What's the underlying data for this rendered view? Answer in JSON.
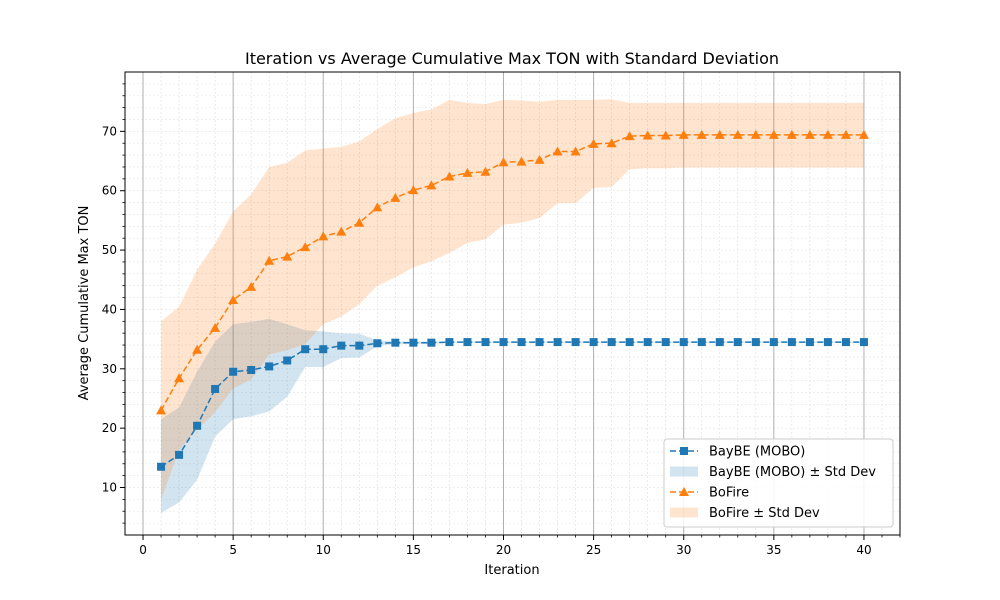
{
  "chart_data": {
    "type": "line",
    "title": "Iteration vs Average Cumulative Max TON with Standard Deviation",
    "xlabel": "Iteration",
    "ylabel": "Average Cumulative Max TON",
    "xlim": [
      -1,
      42
    ],
    "ylim": [
      2,
      80
    ],
    "xticks": [
      0,
      5,
      10,
      15,
      20,
      25,
      30,
      35,
      40
    ],
    "yticks": [
      10,
      20,
      30,
      40,
      50,
      60,
      70
    ],
    "grid": "major vertical solid, minor dotted",
    "legend_position": "lower-right",
    "x": [
      1,
      2,
      3,
      4,
      5,
      6,
      7,
      8,
      9,
      10,
      11,
      12,
      13,
      14,
      15,
      16,
      17,
      18,
      19,
      20,
      21,
      22,
      23,
      24,
      25,
      26,
      27,
      28,
      29,
      30,
      31,
      32,
      33,
      34,
      35,
      36,
      37,
      38,
      39,
      40
    ],
    "series": [
      {
        "name": "BayBE (MOBO)",
        "band_name": "BayBE (MOBO) ± Std Dev",
        "color": "#1f77b4",
        "band_color": "#1f77b4",
        "marker": "square",
        "values": [
          13.5,
          15.5,
          20.4,
          26.6,
          29.5,
          29.8,
          30.4,
          31.4,
          33.3,
          33.3,
          33.9,
          33.9,
          34.3,
          34.4,
          34.4,
          34.4,
          34.5,
          34.5,
          34.5,
          34.5,
          34.5,
          34.5,
          34.5,
          34.5,
          34.5,
          34.5,
          34.5,
          34.5,
          34.5,
          34.5,
          34.5,
          34.5,
          34.5,
          34.5,
          34.5,
          34.5,
          34.5,
          34.5,
          34.5,
          34.5
        ],
        "upper": [
          21.5,
          23.5,
          29.5,
          34.6,
          37.5,
          37.9,
          38.4,
          37.5,
          36.5,
          36.3,
          36.0,
          35.9,
          34.8,
          34.6,
          34.6,
          34.6,
          34.6,
          34.6,
          34.6,
          34.6,
          34.6,
          34.6,
          34.6,
          34.6,
          34.6,
          34.6,
          34.6,
          34.6,
          34.6,
          34.6,
          34.6,
          34.6,
          34.6,
          34.6,
          34.6,
          34.6,
          34.6,
          34.6,
          34.6,
          34.6
        ],
        "lower": [
          5.7,
          7.5,
          11.3,
          18.6,
          21.5,
          22.0,
          22.8,
          25.3,
          30.3,
          30.3,
          31.8,
          31.9,
          33.8,
          34.2,
          34.2,
          34.2,
          34.4,
          34.4,
          34.4,
          34.4,
          34.4,
          34.4,
          34.4,
          34.4,
          34.4,
          34.4,
          34.4,
          34.4,
          34.4,
          34.4,
          34.4,
          34.4,
          34.4,
          34.4,
          34.4,
          34.4,
          34.4,
          34.4,
          34.4,
          34.4
        ]
      },
      {
        "name": "BoFire",
        "band_name": "BoFire ± Std Dev",
        "color": "#ff7f0e",
        "band_color": "#ff7f0e",
        "marker": "triangle",
        "values": [
          23.0,
          28.4,
          33.2,
          36.9,
          41.6,
          43.8,
          48.2,
          48.9,
          50.5,
          52.3,
          53.1,
          54.6,
          57.2,
          58.8,
          60.1,
          60.9,
          62.4,
          63.0,
          63.2,
          64.8,
          64.9,
          65.2,
          66.6,
          66.6,
          67.9,
          68.0,
          69.2,
          69.3,
          69.3,
          69.4,
          69.4,
          69.4,
          69.4,
          69.4,
          69.4,
          69.4,
          69.4,
          69.4,
          69.4,
          69.4
        ],
        "upper": [
          38.0,
          40.5,
          46.7,
          51.1,
          56.5,
          59.4,
          64.0,
          64.7,
          66.8,
          67.1,
          67.4,
          68.3,
          70.4,
          72.2,
          73.1,
          73.7,
          75.3,
          74.8,
          74.6,
          75.3,
          75.2,
          75.0,
          75.3,
          75.3,
          75.3,
          75.4,
          74.8,
          74.8,
          74.8,
          74.8,
          74.8,
          74.8,
          74.8,
          74.8,
          74.8,
          74.8,
          74.8,
          74.8,
          74.8,
          74.8
        ],
        "lower": [
          8.0,
          16.3,
          19.7,
          22.7,
          26.7,
          28.2,
          32.4,
          33.1,
          34.2,
          37.5,
          38.8,
          40.9,
          44.0,
          45.4,
          47.1,
          48.1,
          49.5,
          51.2,
          51.8,
          54.3,
          54.6,
          55.4,
          57.9,
          57.9,
          60.5,
          60.6,
          63.6,
          63.8,
          63.8,
          63.9,
          63.9,
          63.9,
          63.9,
          63.9,
          63.9,
          63.9,
          63.9,
          63.9,
          63.9,
          63.9
        ]
      }
    ]
  }
}
